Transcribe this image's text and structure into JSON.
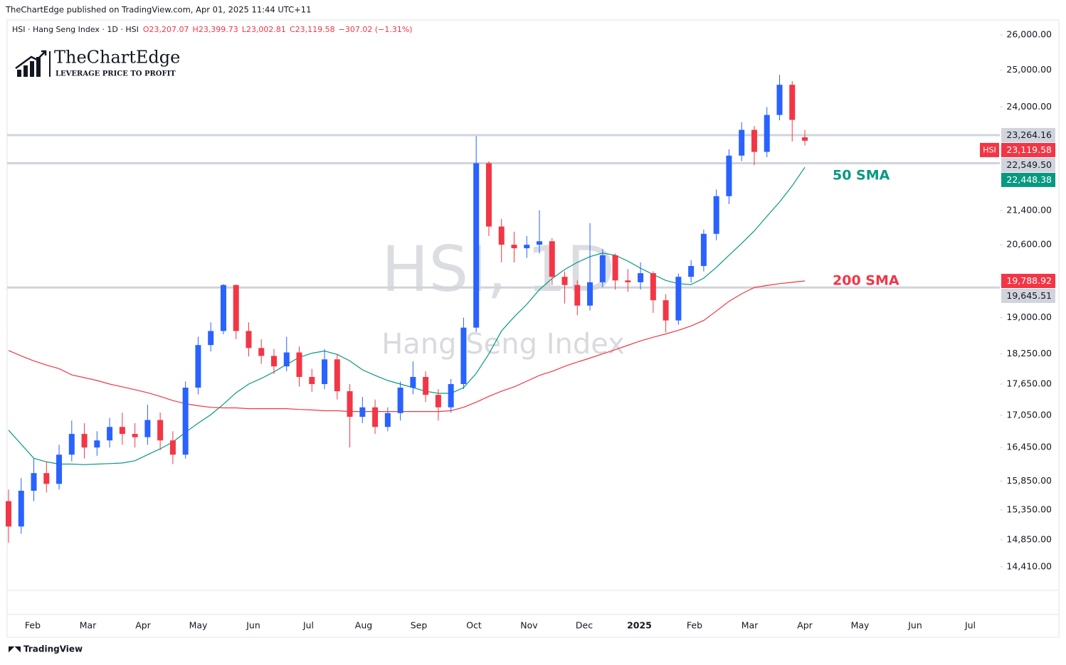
{
  "publisher": "TheChartEdge published on TradingView.com, Apr 01, 2025 11:44 UTC+11",
  "logo": {
    "name": "TheChartEdge",
    "tagline": "LEVERAGE PRICE TO PROFIT"
  },
  "footer": "TradingView",
  "chart_data": {
    "type": "candlestick",
    "symbol_line": "HSI · Hang Seng Index · 1D · HSI",
    "ohlc_labels": [
      "O23,207.07",
      "H23,399.73",
      "L23,002.81",
      "C23,119.58",
      "−307.02 (−1.31%)"
    ],
    "watermark": "HSI, 1D",
    "watermark_subtitle": "Hang Seng Index",
    "x_labels": [
      "Feb",
      "Mar",
      "Apr",
      "May",
      "Jun",
      "Jul",
      "Aug",
      "Sep",
      "Oct",
      "Nov",
      "Dec",
      "2025",
      "Feb",
      "Mar",
      "Apr",
      "May",
      "Jun",
      "Jul"
    ],
    "up_color": "#2962ff",
    "down_color": "#f23645",
    "open": [
      15500,
      15070,
      15680,
      15990,
      15800,
      16320,
      16700,
      16450,
      16580,
      16830,
      16700,
      16640,
      16960,
      16580,
      16320,
      17580,
      18430,
      18720,
      19700,
      18720,
      18370,
      18210,
      18000,
      18280,
      17790,
      17650,
      18140,
      17510,
      17020,
      17200,
      16830,
      17090,
      17580,
      17790,
      17440,
      17200,
      17650,
      18790,
      22550,
      21020,
      20600,
      20520,
      20600,
      20680,
      19880,
      19700,
      19255,
      19760,
      20360,
      19800,
      19760,
      19960,
      19370,
      18940,
      19880,
      20120,
      20850,
      21740,
      22740,
      23400,
      22835,
      23790,
      24600,
      23207.07
    ],
    "high": [
      15700,
      15900,
      16250,
      16200,
      16500,
      16950,
      16900,
      16750,
      17000,
      17100,
      16900,
      17250,
      17100,
      16750,
      17700,
      18600,
      18900,
      19720,
      19710,
      18900,
      18550,
      18350,
      18600,
      18400,
      17950,
      18350,
      18250,
      17650,
      17400,
      17350,
      17200,
      17700,
      18100,
      17900,
      17550,
      17750,
      19000,
      23241,
      22600,
      21200,
      20900,
      20800,
      21400,
      20750,
      20000,
      19800,
      21100,
      20500,
      20400,
      20050,
      20200,
      20000,
      19500,
      19950,
      20250,
      20950,
      21900,
      22900,
      23600,
      23500,
      24000,
      24870,
      24700,
      23399.73
    ],
    "low": [
      14800,
      14950,
      15500,
      15650,
      15700,
      16200,
      16250,
      16300,
      16450,
      16500,
      16450,
      16500,
      16400,
      16150,
      16250,
      17450,
      18300,
      18650,
      18550,
      18200,
      18050,
      17850,
      17900,
      17600,
      17500,
      17550,
      17350,
      16450,
      16900,
      16700,
      16750,
      16950,
      17450,
      17300,
      16950,
      17100,
      17550,
      18700,
      20800,
      20200,
      20200,
      20300,
      20400,
      19700,
      19300,
      19050,
      19150,
      19650,
      19600,
      19550,
      19600,
      19100,
      18690,
      18850,
      19750,
      20000,
      20700,
      21550,
      22600,
      22500,
      22700,
      23650,
      23100,
      23002.81
    ],
    "close": [
      15070,
      15680,
      15990,
      15800,
      16320,
      16700,
      16450,
      16580,
      16830,
      16700,
      16640,
      16960,
      16580,
      16320,
      17580,
      18430,
      18720,
      19700,
      18720,
      18370,
      18210,
      18000,
      18280,
      17790,
      17650,
      18140,
      17510,
      17020,
      17200,
      16830,
      17090,
      17580,
      17790,
      17440,
      17200,
      17650,
      18790,
      22550,
      21020,
      20600,
      20520,
      20600,
      20680,
      19880,
      19700,
      19255,
      19760,
      20360,
      19800,
      19760,
      19960,
      19370,
      18940,
      19880,
      20120,
      20850,
      21740,
      22740,
      23400,
      22835,
      23790,
      24600,
      23660,
      23119.58
    ],
    "series": [
      {
        "name": "50 SMA",
        "color": "#089981",
        "values": [
          16770,
          16510,
          16255,
          16190,
          16150,
          16150,
          16140,
          16150,
          16160,
          16170,
          16210,
          16320,
          16425,
          16550,
          16730,
          16900,
          17060,
          17260,
          17480,
          17650,
          17760,
          17890,
          18040,
          18180,
          18265,
          18310,
          18240,
          18110,
          17930,
          17820,
          17720,
          17650,
          17580,
          17510,
          17470,
          17470,
          17580,
          17860,
          18250,
          18720,
          19015,
          19280,
          19600,
          19840,
          20040,
          20200,
          20330,
          20410,
          20360,
          20230,
          20070,
          19930,
          19800,
          19730,
          19710,
          19850,
          20090,
          20360,
          20630,
          20920,
          21260,
          21600,
          21990,
          22448.38
        ]
      },
      {
        "name": "200 SMA",
        "color": "#f23645",
        "values": [
          18320,
          18210,
          18110,
          18025,
          17955,
          17830,
          17775,
          17720,
          17650,
          17595,
          17540,
          17480,
          17410,
          17330,
          17270,
          17230,
          17200,
          17190,
          17190,
          17175,
          17175,
          17175,
          17175,
          17160,
          17150,
          17135,
          17135,
          17120,
          17120,
          17120,
          17120,
          17120,
          17120,
          17120,
          17120,
          17135,
          17200,
          17300,
          17410,
          17510,
          17595,
          17705,
          17820,
          17900,
          18000,
          18085,
          18165,
          18250,
          18335,
          18425,
          18515,
          18590,
          18660,
          18735,
          18825,
          18940,
          19140,
          19346,
          19508,
          19646,
          19690,
          19730,
          19760,
          19788.92
        ]
      }
    ],
    "log_scale": true,
    "ylim": [
      14040,
      26435
    ],
    "yticks": [
      {
        "value": 26000,
        "label": "26,000.00"
      },
      {
        "value": 25000,
        "label": "25,000.00"
      },
      {
        "value": 24000,
        "label": "24,000.00"
      },
      {
        "value": 21400,
        "label": "21,400.00"
      },
      {
        "value": 20600,
        "label": "20,600.00"
      },
      {
        "value": 19000,
        "label": "19,000.00"
      },
      {
        "value": 18250,
        "label": "18,250.00"
      },
      {
        "value": 17650,
        "label": "17,650.00"
      },
      {
        "value": 17050,
        "label": "17,050.00"
      },
      {
        "value": 16450,
        "label": "16,450.00"
      },
      {
        "value": 15850,
        "label": "15,850.00"
      },
      {
        "value": 15350,
        "label": "15,350.00"
      },
      {
        "value": 14850,
        "label": "14,850.00"
      },
      {
        "value": 14410,
        "label": "14,410.00"
      }
    ],
    "price_levels": [
      {
        "value": 23264.16,
        "label": "23,264.16",
        "color": "#d1d4dc",
        "line": true
      },
      {
        "value": 23119.58,
        "label": "23,119.58",
        "color": "#f23645",
        "tag": "HSI",
        "line": false
      },
      {
        "value": 22549.5,
        "label": "22,549.50",
        "color": "#d1d4dc",
        "line": true
      },
      {
        "value": 22448.38,
        "label": "22,448.38",
        "color": "#089981",
        "line": false
      },
      {
        "value": 19788.92,
        "label": "19,788.92",
        "color": "#f23645",
        "line": false
      },
      {
        "value": 19645.51,
        "label": "19,645.51",
        "color": "#d1d4dc",
        "line": true
      }
    ]
  }
}
